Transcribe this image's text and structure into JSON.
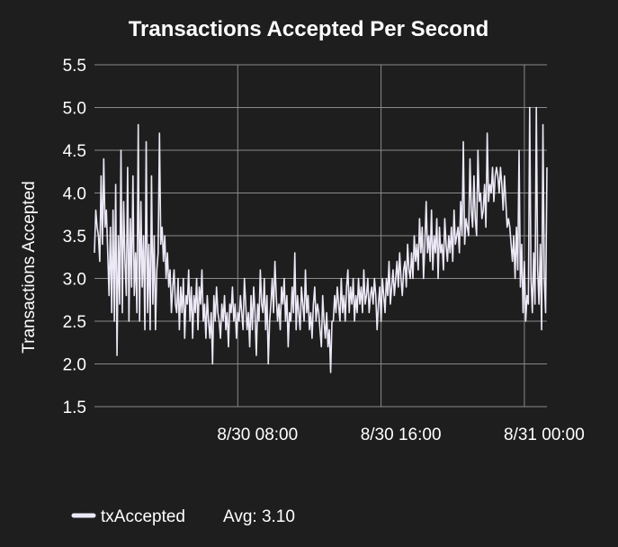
{
  "chart_data": {
    "type": "line",
    "title": "Transactions Accepted Per Second",
    "xlabel": "",
    "ylabel": "Transactions Accepted",
    "ylim": [
      1.5,
      5.5
    ],
    "yticks": [
      "1.5",
      "2.0",
      "2.5",
      "3.0",
      "3.5",
      "4.0",
      "4.5",
      "5.0",
      "5.5"
    ],
    "xticks": [
      "8/30 08:00",
      "8/30 16:00",
      "8/31 00:00"
    ],
    "xtick_index": [
      108,
      216,
      324
    ],
    "grid": true,
    "legend": "bottom-left",
    "series": [
      {
        "name": "txAccepted",
        "legend_label": "txAccepted",
        "stat_label": "Avg: 3.10",
        "color": "#ece8f6",
        "values": [
          3.3,
          3.8,
          3.6,
          3.5,
          3.2,
          4.2,
          3.4,
          4.4,
          3.6,
          3.8,
          3.3,
          2.8,
          3.6,
          2.6,
          3.8,
          2.5,
          4.1,
          2.1,
          3.5,
          2.7,
          4.5,
          2.6,
          3.9,
          3.2,
          2.8,
          4.3,
          2.5,
          3.7,
          2.9,
          4.2,
          2.8,
          3.3,
          2.6,
          4.8,
          2.5,
          3.9,
          2.9,
          3.5,
          2.4,
          4.6,
          2.6,
          3.4,
          2.4,
          4.2,
          2.7,
          3.5,
          2.4,
          3.1,
          3.3,
          4.7,
          3.4,
          3.6,
          3.2,
          3.5,
          3.0,
          3.3,
          2.9,
          3.1,
          2.6,
          2.9,
          3.1,
          2.7,
          2.6,
          3.0,
          2.4,
          2.9,
          2.6,
          3.0,
          2.3,
          2.8,
          2.7,
          3.1,
          2.5,
          2.9,
          2.3,
          2.8,
          2.6,
          3.0,
          2.4,
          2.9,
          2.7,
          3.1,
          2.5,
          2.7,
          2.3,
          2.8,
          2.5,
          2.3,
          2.6,
          2.0,
          2.8,
          2.5,
          2.9,
          2.6,
          2.5,
          2.3,
          2.7,
          2.5,
          2.8,
          2.4,
          2.6,
          2.2,
          2.7,
          2.6,
          2.9,
          2.5,
          2.7,
          2.3,
          2.6,
          2.5,
          2.8,
          2.6,
          2.4,
          3.0,
          2.7,
          2.4,
          2.6,
          2.2,
          2.8,
          2.4,
          2.9,
          2.6,
          2.1,
          2.7,
          2.5,
          3.1,
          2.7,
          2.6,
          3.0,
          2.4,
          2.8,
          2.0,
          2.5,
          2.7,
          3.0,
          2.6,
          3.2,
          2.8,
          2.5,
          2.7,
          2.4,
          2.9,
          2.7,
          3.0,
          2.5,
          2.8,
          2.2,
          2.6,
          2.5,
          2.9,
          2.6,
          3.3,
          2.4,
          2.8,
          2.6,
          2.4,
          2.9,
          2.7,
          2.5,
          3.1,
          2.6,
          2.8,
          2.4,
          2.6,
          2.3,
          2.7,
          2.9,
          2.5,
          2.7,
          2.6,
          2.4,
          2.2,
          2.8,
          2.5,
          2.3,
          2.6,
          2.2,
          2.4,
          1.9,
          2.5,
          2.5,
          2.8,
          2.6,
          2.9,
          2.7,
          2.5,
          3.0,
          2.6,
          2.8,
          2.5,
          2.9,
          3.1,
          2.6,
          2.9,
          2.7,
          3.0,
          2.5,
          2.8,
          2.6,
          3.0,
          2.7,
          2.9,
          2.6,
          3.1,
          2.7,
          2.8,
          3.0,
          2.6,
          2.8,
          2.9,
          2.7,
          3.0,
          2.8,
          2.4,
          2.7,
          2.9,
          2.5,
          3.0,
          2.8,
          2.6,
          3.0,
          2.8,
          3.2,
          2.7,
          2.9,
          3.1,
          2.8,
          3.0,
          3.2,
          2.9,
          3.3,
          3.0,
          2.8,
          3.1,
          3.2,
          2.9,
          3.4,
          3.1,
          3.0,
          3.3,
          3.0,
          3.5,
          3.2,
          3.4,
          3.1,
          3.7,
          3.3,
          3.6,
          3.0,
          3.4,
          3.9,
          3.3,
          3.5,
          3.2,
          3.8,
          3.1,
          3.5,
          3.3,
          3.7,
          3.0,
          3.6,
          3.3,
          3.4,
          3.1,
          3.7,
          3.4,
          3.2,
          3.5,
          3.3,
          3.6,
          3.2,
          3.8,
          3.4,
          3.5,
          3.6,
          3.3,
          3.9,
          3.5,
          4.6,
          3.4,
          3.7,
          3.6,
          3.5,
          4.4,
          3.8,
          3.6,
          4.2,
          3.7,
          3.5,
          4.5,
          3.9,
          4.0,
          3.7,
          3.8,
          4.1,
          3.6,
          4.7,
          3.9,
          4.1,
          4.0,
          4.3,
          3.9,
          4.2,
          4.3,
          4.2,
          4.0,
          4.3,
          4.1,
          3.8,
          4.2,
          3.9,
          3.6,
          3.7,
          3.6,
          3.4,
          3.2,
          3.5,
          3.0,
          3.6,
          3.1,
          4.5,
          2.9,
          3.4,
          2.6,
          3.2,
          2.5,
          2.8,
          2.7,
          5.0,
          3.0,
          2.6,
          3.3,
          2.7,
          5.0,
          3.1,
          2.7,
          3.4,
          2.4,
          4.8,
          3.0,
          2.6,
          4.3
        ]
      }
    ]
  }
}
